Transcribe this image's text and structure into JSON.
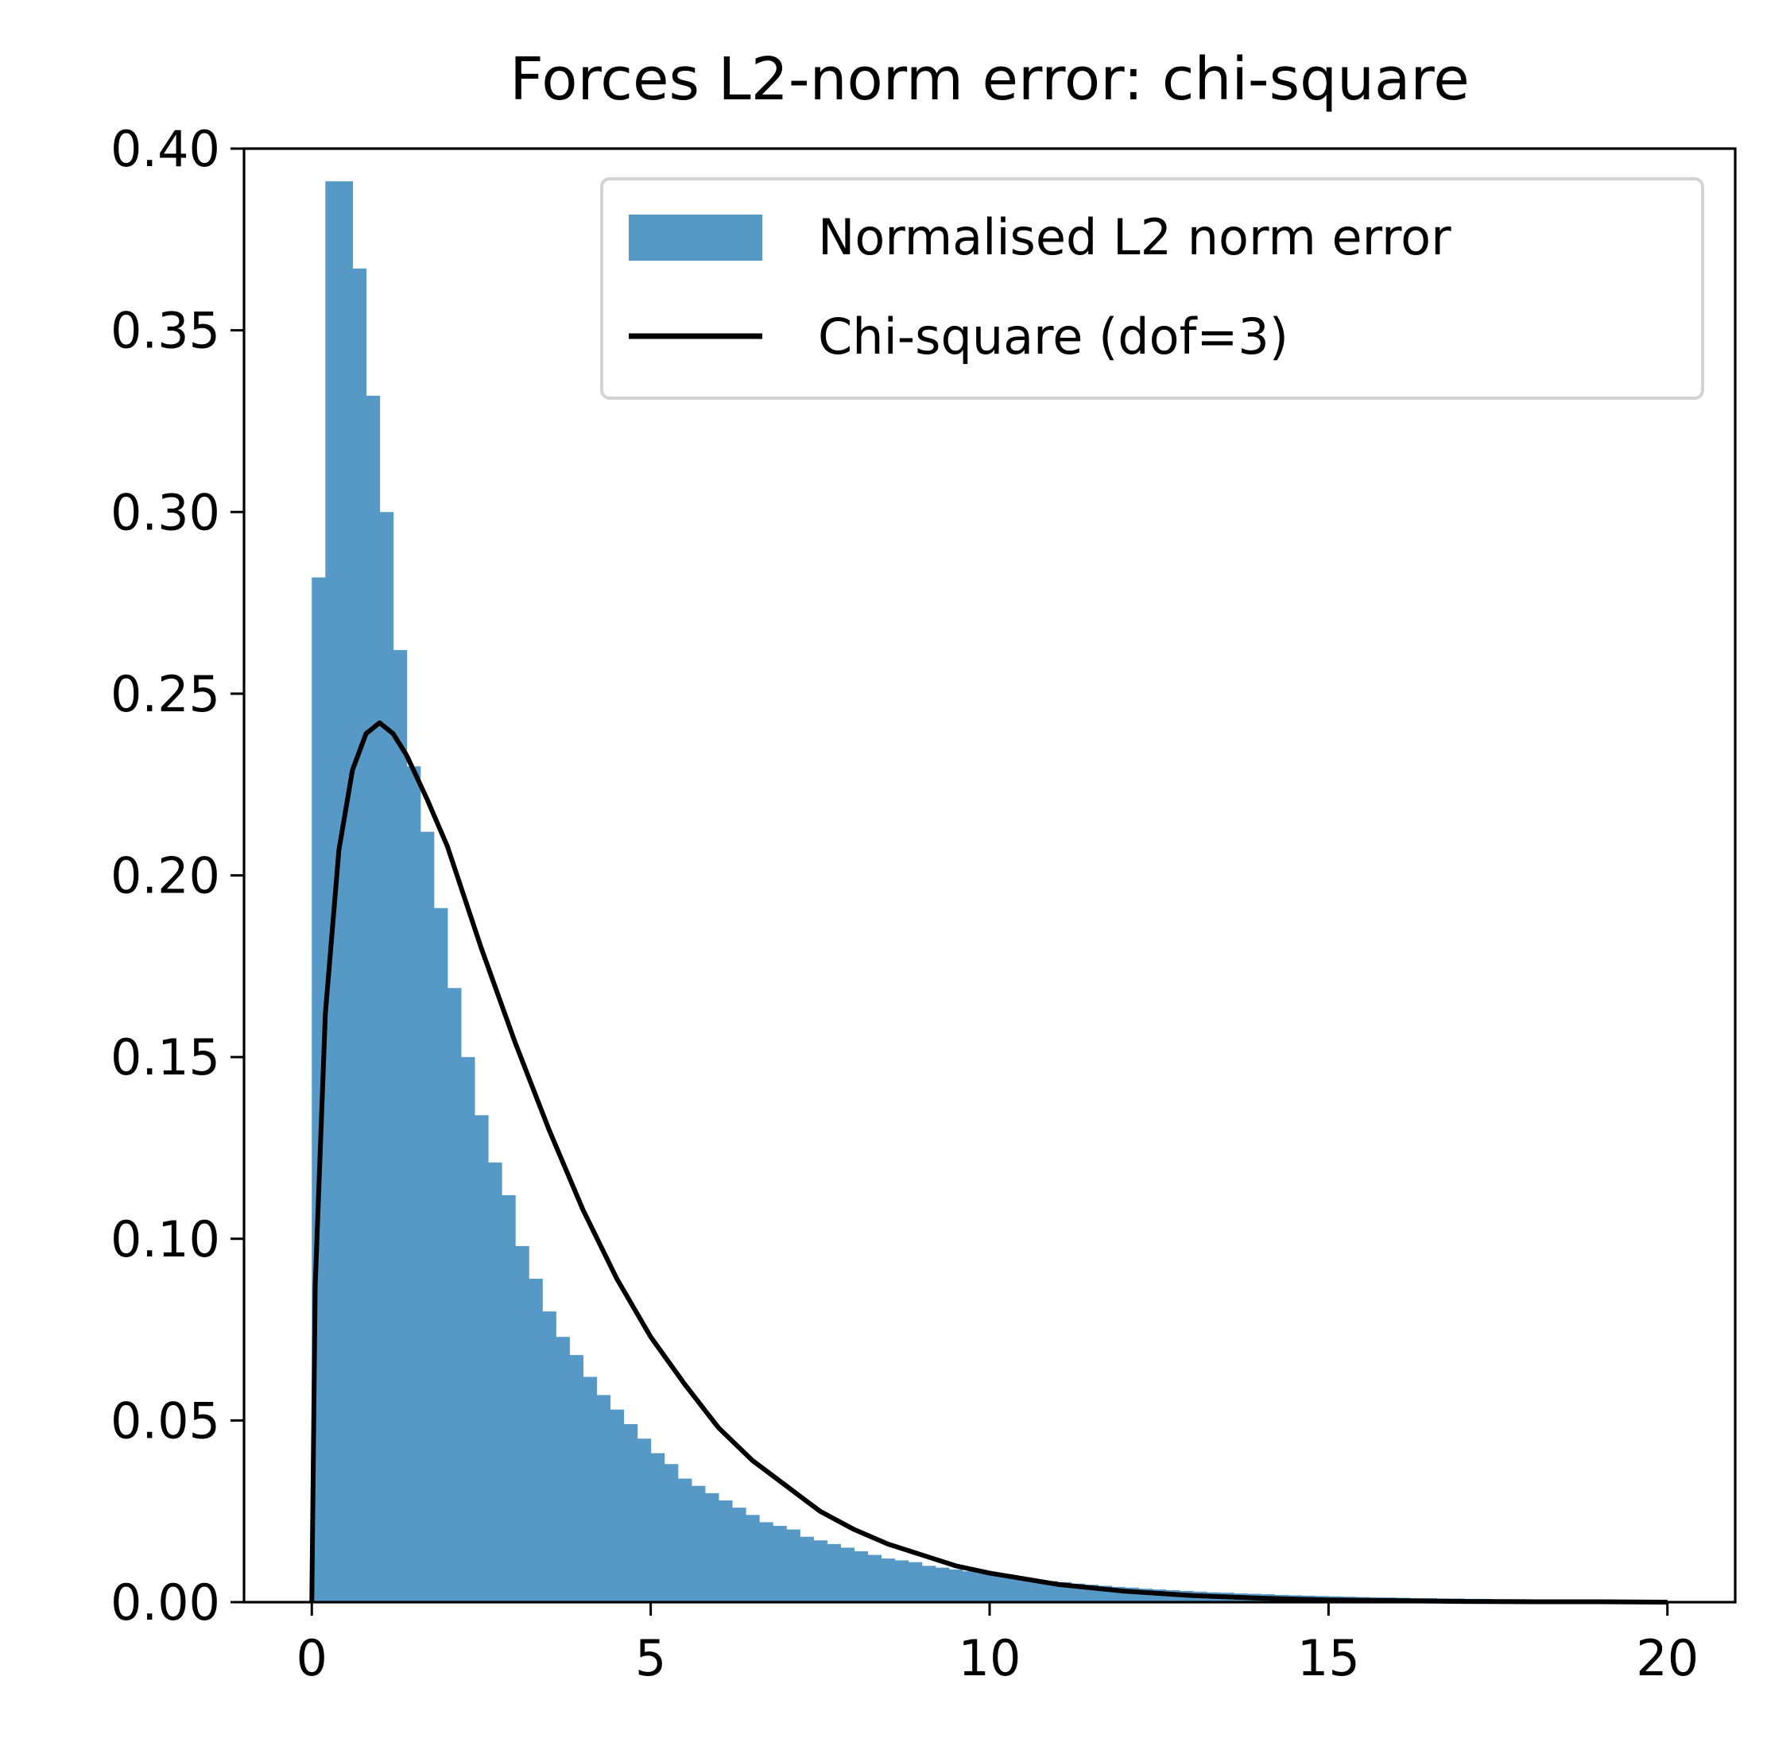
{
  "chart_data": {
    "type": "bar",
    "title": "Forces L2-norm error: chi-square",
    "xlabel": "",
    "ylabel": "",
    "xlim": [
      -1,
      21
    ],
    "ylim": [
      0,
      0.4
    ],
    "x_ticks": [
      0,
      5,
      10,
      15,
      20
    ],
    "x_tick_labels": [
      "0",
      "5",
      "10",
      "15",
      "20"
    ],
    "y_ticks": [
      0,
      0.05,
      0.1,
      0.15,
      0.2,
      0.25,
      0.3,
      0.35,
      0.4
    ],
    "y_tick_labels": [
      "0.00",
      "0.05",
      "0.10",
      "0.15",
      "0.20",
      "0.25",
      "0.30",
      "0.35",
      "0.40"
    ],
    "grid": false,
    "legend_position": "upper-right",
    "series": [
      {
        "name": "Normalised L2 norm error",
        "kind": "histogram",
        "color": "#5799c6",
        "bin_width": 0.2,
        "bin_start": 0.0,
        "values": [
          0.282,
          0.391,
          0.391,
          0.367,
          0.332,
          0.3,
          0.262,
          0.23,
          0.212,
          0.191,
          0.169,
          0.15,
          0.134,
          0.121,
          0.112,
          0.098,
          0.089,
          0.08,
          0.073,
          0.068,
          0.062,
          0.057,
          0.053,
          0.049,
          0.045,
          0.041,
          0.038,
          0.034,
          0.032,
          0.03,
          0.028,
          0.026,
          0.024,
          0.022,
          0.021,
          0.02,
          0.018,
          0.017,
          0.016,
          0.015,
          0.014,
          0.013,
          0.012,
          0.0115,
          0.011,
          0.01,
          0.0095,
          0.009,
          0.0085,
          0.008,
          0.0075,
          0.007,
          0.0066,
          0.0062,
          0.0058,
          0.0055,
          0.0051,
          0.0048,
          0.0045,
          0.0042,
          0.004,
          0.0037,
          0.0035,
          0.0033,
          0.0031,
          0.0029,
          0.0027,
          0.0026,
          0.0024,
          0.0023,
          0.0022,
          0.002,
          0.0019,
          0.0018,
          0.0017,
          0.0016,
          0.0015,
          0.0014,
          0.0013,
          0.0013,
          0.0012,
          0.0011,
          0.0011,
          0.001,
          0.001,
          0.0009,
          0.0009,
          0.0008,
          0.0008,
          0.0008,
          0.0007,
          0.0007,
          0.0006,
          0.0006,
          0.0006,
          0.0005,
          0.0005,
          0.0005,
          0.0004,
          0.0004
        ]
      },
      {
        "name": "Chi-square (dof=3)",
        "kind": "line",
        "color": "#000000",
        "x": [
          0.0,
          0.05,
          0.2,
          0.4,
          0.6,
          0.8,
          1.0,
          1.2,
          1.4,
          1.7,
          2.0,
          2.5,
          3.0,
          3.5,
          4.0,
          4.5,
          5.0,
          5.5,
          6.0,
          6.5,
          7.0,
          7.5,
          8.0,
          8.5,
          9.0,
          9.5,
          10.0,
          11.0,
          12.0,
          13.0,
          14.0,
          15.0,
          16.0,
          17.0,
          18.0,
          19.0,
          20.0
        ],
        "y": [
          0.0,
          0.087,
          0.162,
          0.207,
          0.229,
          0.239,
          0.242,
          0.239,
          0.233,
          0.221,
          0.208,
          0.18,
          0.154,
          0.13,
          0.108,
          0.089,
          0.073,
          0.06,
          0.048,
          0.039,
          0.032,
          0.025,
          0.02,
          0.016,
          0.013,
          0.01,
          0.008,
          0.0049,
          0.003,
          0.0018,
          0.0011,
          0.0006,
          0.0004,
          0.0002,
          0.0001,
          0.0001,
          0.0
        ]
      }
    ]
  }
}
